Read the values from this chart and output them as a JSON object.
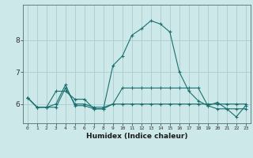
{
  "xlabel": "Humidex (Indice chaleur)",
  "background_color": "#cce8e8",
  "grid_color": "#aacccc",
  "line_color": "#1a7070",
  "x_values": [
    0,
    1,
    2,
    3,
    4,
    5,
    6,
    7,
    8,
    9,
    10,
    11,
    12,
    13,
    14,
    15,
    16,
    17,
    18,
    19,
    20,
    21,
    22,
    23
  ],
  "series": [
    [
      6.2,
      5.9,
      5.9,
      5.9,
      6.5,
      6.0,
      6.0,
      5.9,
      5.9,
      6.0,
      6.0,
      6.0,
      6.0,
      6.0,
      6.0,
      6.0,
      6.0,
      6.0,
      6.0,
      6.0,
      6.0,
      6.0,
      6.0,
      6.0
    ],
    [
      6.2,
      5.9,
      5.9,
      6.0,
      6.6,
      5.95,
      5.95,
      5.85,
      5.85,
      7.2,
      7.5,
      8.15,
      8.35,
      8.6,
      8.5,
      8.25,
      7.0,
      6.4,
      6.1,
      5.95,
      6.05,
      5.85,
      5.6,
      5.95
    ],
    [
      6.2,
      5.9,
      5.9,
      6.4,
      6.4,
      6.15,
      6.15,
      5.85,
      5.85,
      6.0,
      6.5,
      6.5,
      6.5,
      6.5,
      6.5,
      6.5,
      6.5,
      6.5,
      6.5,
      5.95,
      5.85,
      5.85,
      5.85,
      5.85
    ]
  ],
  "ylim": [
    5.4,
    9.1
  ],
  "yticks": [
    6,
    7,
    8
  ],
  "xlim": [
    -0.5,
    23.5
  ],
  "xticks": [
    0,
    1,
    2,
    3,
    4,
    5,
    6,
    7,
    8,
    9,
    10,
    11,
    12,
    13,
    14,
    15,
    16,
    17,
    18,
    19,
    20,
    21,
    22,
    23
  ],
  "xtick_labels": [
    "0",
    "1",
    "2",
    "3",
    "4",
    "5",
    "6",
    "7",
    "8",
    "9",
    "10",
    "11",
    "12",
    "13",
    "14",
    "15",
    "16",
    "17",
    "18",
    "19",
    "20",
    "21",
    "22",
    "23"
  ]
}
